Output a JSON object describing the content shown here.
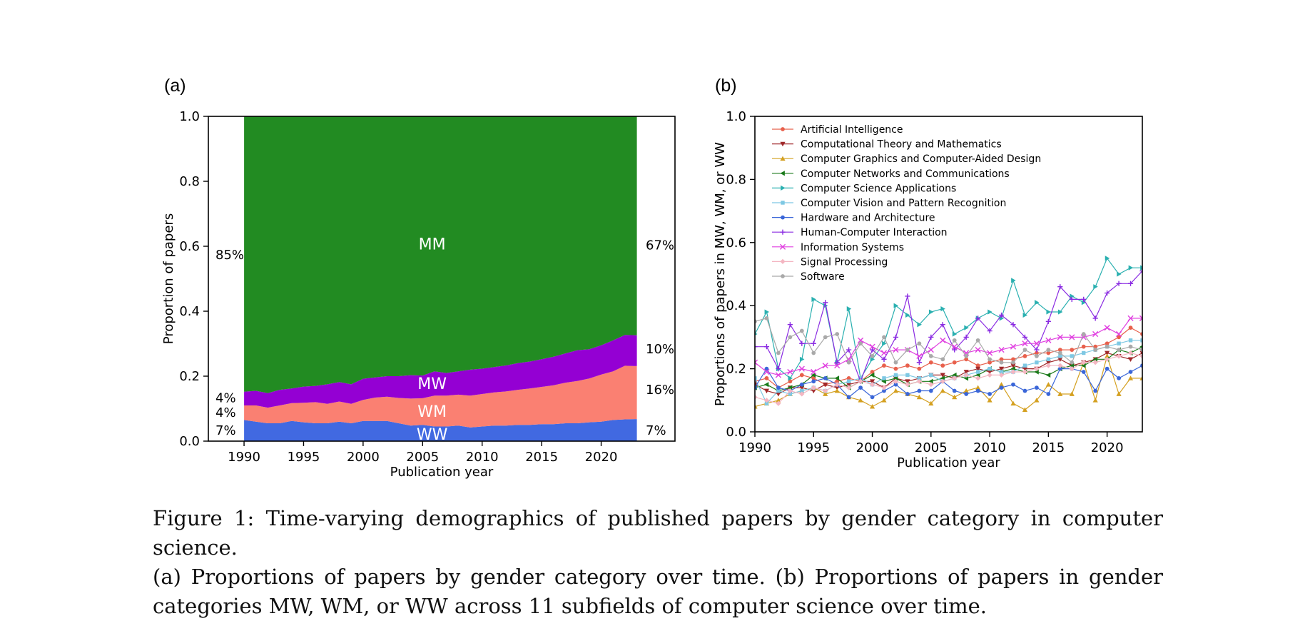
{
  "panels": {
    "a": {
      "tag": "(a)"
    },
    "b": {
      "tag": "(b)"
    }
  },
  "chart_data": [
    {
      "type": "area",
      "stacked": true,
      "xlabel": "Publication year",
      "ylabel": "Proportion of papers",
      "ylim": [
        0,
        1
      ],
      "xticks": [
        1990,
        1995,
        2000,
        2005,
        2010,
        2015,
        2020
      ],
      "yticks": [
        "0.0",
        "0.2",
        "0.4",
        "0.6",
        "0.8",
        "1.0"
      ],
      "x": [
        1990,
        1991,
        1992,
        1993,
        1994,
        1995,
        1996,
        1997,
        1998,
        1999,
        2000,
        2001,
        2002,
        2003,
        2004,
        2005,
        2006,
        2007,
        2008,
        2009,
        2010,
        2011,
        2012,
        2013,
        2014,
        2015,
        2016,
        2017,
        2018,
        2019,
        2020,
        2021,
        2022,
        2023
      ],
      "series": [
        {
          "name": "WW",
          "color": "#4169e1",
          "values": [
            0.065,
            0.06,
            0.055,
            0.055,
            0.062,
            0.058,
            0.055,
            0.055,
            0.06,
            0.055,
            0.062,
            0.062,
            0.062,
            0.055,
            0.048,
            0.05,
            0.045,
            0.045,
            0.048,
            0.042,
            0.045,
            0.048,
            0.048,
            0.05,
            0.05,
            0.052,
            0.052,
            0.055,
            0.055,
            0.058,
            0.06,
            0.065,
            0.067,
            0.068
          ]
        },
        {
          "name": "WM",
          "color": "#fa8072",
          "values": [
            0.045,
            0.05,
            0.048,
            0.055,
            0.055,
            0.06,
            0.065,
            0.06,
            0.062,
            0.06,
            0.065,
            0.072,
            0.075,
            0.078,
            0.083,
            0.082,
            0.095,
            0.095,
            0.095,
            0.098,
            0.1,
            0.102,
            0.105,
            0.108,
            0.112,
            0.115,
            0.12,
            0.125,
            0.13,
            0.135,
            0.145,
            0.15,
            0.165,
            0.163
          ]
        },
        {
          "name": "MW",
          "color": "#9400d3",
          "values": [
            0.042,
            0.045,
            0.045,
            0.048,
            0.045,
            0.05,
            0.05,
            0.06,
            0.06,
            0.06,
            0.065,
            0.062,
            0.063,
            0.067,
            0.072,
            0.07,
            0.075,
            0.07,
            0.072,
            0.08,
            0.078,
            0.078,
            0.08,
            0.082,
            0.083,
            0.085,
            0.088,
            0.09,
            0.095,
            0.09,
            0.09,
            0.095,
            0.095,
            0.095
          ]
        },
        {
          "name": "MM",
          "color": "#228b22",
          "values": [
            0.848,
            0.845,
            0.852,
            0.842,
            0.838,
            0.832,
            0.83,
            0.825,
            0.818,
            0.825,
            0.808,
            0.804,
            0.8,
            0.8,
            0.797,
            0.798,
            0.785,
            0.79,
            0.785,
            0.78,
            0.777,
            0.772,
            0.767,
            0.76,
            0.755,
            0.748,
            0.74,
            0.73,
            0.72,
            0.717,
            0.705,
            0.69,
            0.673,
            0.674
          ]
        }
      ],
      "left_labels": [
        "85%",
        "4%",
        "4%",
        "7%"
      ],
      "right_labels": [
        "67%",
        "10%",
        "16%",
        "7%"
      ]
    },
    {
      "type": "line",
      "xlabel": "Publication year",
      "ylabel": "Proportions of papers in MW, WM, or WW",
      "ylim": [
        0,
        1
      ],
      "xlim": [
        1990,
        2023
      ],
      "xticks": [
        1990,
        1995,
        2000,
        2005,
        2010,
        2015,
        2020
      ],
      "yticks": [
        "0.0",
        "0.2",
        "0.4",
        "0.6",
        "0.8",
        "1.0"
      ],
      "legend": "top-left",
      "x": [
        1990,
        1991,
        1992,
        1993,
        1994,
        1995,
        1996,
        1997,
        1998,
        1999,
        2000,
        2001,
        2002,
        2003,
        2004,
        2005,
        2006,
        2007,
        2008,
        2009,
        2010,
        2011,
        2012,
        2013,
        2014,
        2015,
        2016,
        2017,
        2018,
        2019,
        2020,
        2021,
        2022,
        2023
      ],
      "series": [
        {
          "name": "Artificial Intelligence",
          "color": "#e8604c",
          "marker": "circle",
          "values": [
            0.16,
            0.17,
            0.14,
            0.16,
            0.18,
            0.17,
            0.15,
            0.16,
            0.17,
            0.16,
            0.19,
            0.21,
            0.2,
            0.21,
            0.2,
            0.22,
            0.21,
            0.22,
            0.23,
            0.21,
            0.22,
            0.23,
            0.23,
            0.24,
            0.25,
            0.25,
            0.26,
            0.26,
            0.27,
            0.27,
            0.28,
            0.3,
            0.33,
            0.31
          ]
        },
        {
          "name": "Computational Theory and Mathematics",
          "color": "#a0282a",
          "marker": "triangle-down",
          "values": [
            0.15,
            0.13,
            0.12,
            0.14,
            0.14,
            0.13,
            0.15,
            0.14,
            0.15,
            0.16,
            0.16,
            0.14,
            0.17,
            0.16,
            0.17,
            0.18,
            0.18,
            0.17,
            0.19,
            0.2,
            0.19,
            0.2,
            0.21,
            0.2,
            0.2,
            0.22,
            0.23,
            0.21,
            0.22,
            0.23,
            0.25,
            0.24,
            0.23,
            0.25
          ]
        },
        {
          "name": "Computer Graphics and Computer-Aided Design",
          "color": "#d4a020",
          "marker": "triangle-up",
          "values": [
            0.08,
            0.09,
            0.1,
            0.12,
            0.13,
            0.14,
            0.12,
            0.13,
            0.11,
            0.1,
            0.08,
            0.1,
            0.13,
            0.12,
            0.11,
            0.09,
            0.13,
            0.11,
            0.13,
            0.14,
            0.1,
            0.15,
            0.09,
            0.07,
            0.1,
            0.15,
            0.12,
            0.12,
            0.22,
            0.1,
            0.24,
            0.12,
            0.17,
            0.17
          ]
        },
        {
          "name": "Computer Networks and Communications",
          "color": "#1a7a1a",
          "marker": "triangle-left",
          "values": [
            0.14,
            0.15,
            0.13,
            0.14,
            0.15,
            0.18,
            0.17,
            0.17,
            0.14,
            0.16,
            0.18,
            0.16,
            0.17,
            0.15,
            0.16,
            0.16,
            0.17,
            0.18,
            0.17,
            0.18,
            0.2,
            0.19,
            0.2,
            0.19,
            0.19,
            0.18,
            0.2,
            0.21,
            0.21,
            0.23,
            0.23,
            0.26,
            0.25,
            0.27
          ]
        },
        {
          "name": "Computer Science Applications",
          "color": "#2ab0b0",
          "marker": "triangle-right",
          "values": [
            0.31,
            0.38,
            0.2,
            0.17,
            0.23,
            0.42,
            0.4,
            0.22,
            0.39,
            0.17,
            0.23,
            0.28,
            0.4,
            0.37,
            0.34,
            0.38,
            0.39,
            0.31,
            0.33,
            0.36,
            0.38,
            0.36,
            0.48,
            0.37,
            0.41,
            0.38,
            0.38,
            0.43,
            0.41,
            0.46,
            0.55,
            0.5,
            0.52,
            0.52
          ]
        },
        {
          "name": "Computer Vision and Pattern Recognition",
          "color": "#7ec8e3",
          "marker": "square",
          "values": [
            0.17,
            0.09,
            0.13,
            0.12,
            0.13,
            0.14,
            0.13,
            0.15,
            0.16,
            0.17,
            0.15,
            0.17,
            0.18,
            0.18,
            0.17,
            0.18,
            0.16,
            0.17,
            0.18,
            0.19,
            0.2,
            0.19,
            0.19,
            0.21,
            0.22,
            0.23,
            0.24,
            0.24,
            0.25,
            0.26,
            0.27,
            0.28,
            0.29,
            0.29
          ]
        },
        {
          "name": "Hardware and Architecture",
          "color": "#3a66d8",
          "marker": "circle",
          "values": [
            0.14,
            0.2,
            0.14,
            0.13,
            0.15,
            0.16,
            0.17,
            0.15,
            0.11,
            0.14,
            0.11,
            0.13,
            0.15,
            0.12,
            0.13,
            0.13,
            0.16,
            0.13,
            0.12,
            0.13,
            0.12,
            0.14,
            0.15,
            0.13,
            0.14,
            0.12,
            0.2,
            0.2,
            0.19,
            0.13,
            0.2,
            0.17,
            0.19,
            0.21
          ]
        },
        {
          "name": "Human-Computer Interaction",
          "color": "#8a2be2",
          "marker": "plus",
          "values": [
            0.27,
            0.27,
            0.2,
            0.34,
            0.28,
            0.28,
            0.41,
            0.22,
            0.26,
            0.16,
            0.26,
            0.23,
            0.3,
            0.43,
            0.22,
            0.3,
            0.34,
            0.26,
            0.3,
            0.36,
            0.32,
            0.37,
            0.34,
            0.3,
            0.26,
            0.35,
            0.46,
            0.42,
            0.42,
            0.36,
            0.44,
            0.47,
            0.47,
            0.51
          ]
        },
        {
          "name": "Information Systems",
          "color": "#e040e0",
          "marker": "x",
          "values": [
            0.22,
            0.19,
            0.18,
            0.19,
            0.2,
            0.19,
            0.21,
            0.21,
            0.23,
            0.29,
            0.27,
            0.25,
            0.26,
            0.26,
            0.24,
            0.26,
            0.29,
            0.27,
            0.25,
            0.26,
            0.25,
            0.26,
            0.27,
            0.28,
            0.28,
            0.29,
            0.3,
            0.3,
            0.3,
            0.31,
            0.33,
            0.31,
            0.36,
            0.36
          ]
        },
        {
          "name": "Signal Processing",
          "color": "#f4b6c2",
          "marker": "diamond",
          "values": [
            0.11,
            0.1,
            0.09,
            0.13,
            0.12,
            0.14,
            0.13,
            0.15,
            0.14,
            0.16,
            0.15,
            0.14,
            0.16,
            0.15,
            0.16,
            0.15,
            0.16,
            0.17,
            0.18,
            0.17,
            0.18,
            0.18,
            0.19,
            0.19,
            0.2,
            0.21,
            0.21,
            0.2,
            0.22,
            0.22,
            0.23,
            0.24,
            0.25,
            0.24
          ]
        },
        {
          "name": "Software",
          "color": "#a9a9a9",
          "marker": "circle",
          "values": [
            0.35,
            0.36,
            0.25,
            0.3,
            0.32,
            0.25,
            0.3,
            0.31,
            0.22,
            0.28,
            0.24,
            0.3,
            0.22,
            0.26,
            0.28,
            0.24,
            0.23,
            0.29,
            0.24,
            0.29,
            0.23,
            0.22,
            0.22,
            0.26,
            0.24,
            0.26,
            0.25,
            0.22,
            0.31,
            0.26,
            0.27,
            0.26,
            0.27,
            0.26
          ]
        }
      ]
    }
  ],
  "caption": {
    "line1": "Figure 1: Time-varying demographics of published papers by gender category in computer science.",
    "line2": "(a) Proportions of papers by gender category over time.  (b) Proportions of papers in gender",
    "line3": "categories MW, WM, or WW across 11 subfields of computer science over time."
  }
}
